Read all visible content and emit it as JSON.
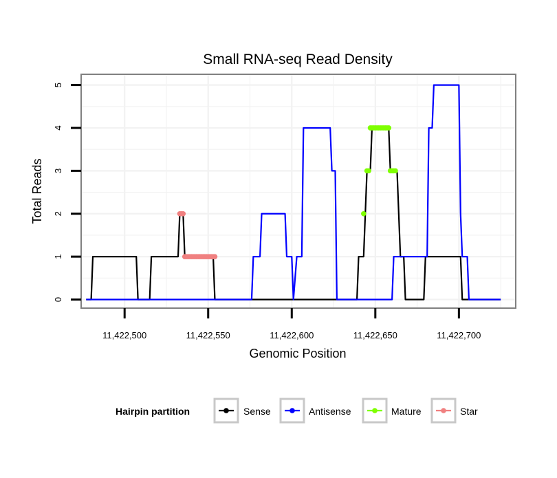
{
  "chart_data": {
    "type": "line",
    "title": "Small RNA-seq Read Density",
    "xlabel": "Genomic Position",
    "ylabel": "Total Reads",
    "xlim": [
      11422474,
      11422734
    ],
    "ylim": [
      -0.2,
      5.25
    ],
    "x_ticks": [
      11422500,
      11422550,
      11422600,
      11422650,
      11422700
    ],
    "x_tick_labels": [
      "11,422,500",
      "11,422,550",
      "11,422,600",
      "11,422,650",
      "11,422,700"
    ],
    "y_ticks": [
      0,
      1,
      2,
      3,
      4,
      5
    ],
    "y_tick_labels": [
      "0",
      "1",
      "2",
      "3",
      "4",
      "5"
    ],
    "grid": true,
    "legend": {
      "title": "Hairpin partition",
      "position": "bottom",
      "entries": [
        "Sense",
        "Antisense",
        "Mature",
        "Star"
      ]
    },
    "series": [
      {
        "name": "Sense",
        "color": "#000000",
        "kind": "line",
        "points": [
          [
            11422477,
            0
          ],
          [
            11422480,
            0
          ],
          [
            11422481,
            1
          ],
          [
            11422507,
            1
          ],
          [
            11422508,
            0
          ],
          [
            11422515,
            0
          ],
          [
            11422516,
            1
          ],
          [
            11422532,
            1
          ],
          [
            11422533,
            2
          ],
          [
            11422535,
            2
          ],
          [
            11422536,
            1
          ],
          [
            11422553,
            1
          ],
          [
            11422554,
            0
          ],
          [
            11422639,
            0
          ],
          [
            11422640,
            1
          ],
          [
            11422643,
            1
          ],
          [
            11422644,
            2
          ],
          [
            11422645,
            3
          ],
          [
            11422647,
            3
          ],
          [
            11422648,
            4
          ],
          [
            11422658,
            4
          ],
          [
            11422659,
            3
          ],
          [
            11422663,
            3
          ],
          [
            11422664,
            2
          ],
          [
            11422665,
            1
          ],
          [
            11422667,
            1
          ],
          [
            11422668,
            0
          ],
          [
            11422679,
            0
          ],
          [
            11422680,
            1
          ],
          [
            11422701,
            1
          ],
          [
            11422702,
            0
          ],
          [
            11422725,
            0
          ]
        ]
      },
      {
        "name": "Antisense",
        "color": "#0000ff",
        "kind": "line",
        "points": [
          [
            11422477,
            0
          ],
          [
            11422576,
            0
          ],
          [
            11422577,
            1
          ],
          [
            11422581,
            1
          ],
          [
            11422582,
            2
          ],
          [
            11422596,
            2
          ],
          [
            11422597,
            1
          ],
          [
            11422600,
            1
          ],
          [
            11422601,
            0
          ],
          [
            11422603,
            1
          ],
          [
            11422606,
            1
          ],
          [
            11422607,
            4
          ],
          [
            11422623,
            4
          ],
          [
            11422624,
            3
          ],
          [
            11422626,
            3
          ],
          [
            11422627,
            0
          ],
          [
            11422660,
            0
          ],
          [
            11422661,
            1
          ],
          [
            11422681,
            1
          ],
          [
            11422682,
            4
          ],
          [
            11422684,
            4
          ],
          [
            11422685,
            5
          ],
          [
            11422700,
            5
          ],
          [
            11422701,
            2
          ],
          [
            11422702,
            1
          ],
          [
            11422705,
            1
          ],
          [
            11422706,
            0
          ],
          [
            11422725,
            0
          ]
        ]
      },
      {
        "name": "Mature",
        "color": "#7fff00",
        "kind": "points",
        "points": [
          [
            11422643,
            2
          ],
          [
            11422645,
            3
          ],
          [
            11422646,
            3
          ],
          [
            11422647,
            4
          ],
          [
            11422648,
            4
          ],
          [
            11422649,
            4
          ],
          [
            11422650,
            4
          ],
          [
            11422651,
            4
          ],
          [
            11422652,
            4
          ],
          [
            11422653,
            4
          ],
          [
            11422654,
            4
          ],
          [
            11422655,
            4
          ],
          [
            11422656,
            4
          ],
          [
            11422657,
            4
          ],
          [
            11422658,
            4
          ],
          [
            11422659,
            3
          ],
          [
            11422660,
            3
          ],
          [
            11422661,
            3
          ],
          [
            11422662,
            3
          ]
        ]
      },
      {
        "name": "Star",
        "color": "#f08080",
        "kind": "points",
        "points": [
          [
            11422533,
            2
          ],
          [
            11422534,
            2
          ],
          [
            11422535,
            2
          ],
          [
            11422536,
            1
          ],
          [
            11422537,
            1
          ],
          [
            11422538,
            1
          ],
          [
            11422539,
            1
          ],
          [
            11422540,
            1
          ],
          [
            11422541,
            1
          ],
          [
            11422542,
            1
          ],
          [
            11422543,
            1
          ],
          [
            11422544,
            1
          ],
          [
            11422545,
            1
          ],
          [
            11422546,
            1
          ],
          [
            11422547,
            1
          ],
          [
            11422548,
            1
          ],
          [
            11422549,
            1
          ],
          [
            11422550,
            1
          ],
          [
            11422551,
            1
          ],
          [
            11422552,
            1
          ],
          [
            11422553,
            1
          ],
          [
            11422554,
            1
          ]
        ]
      }
    ]
  }
}
